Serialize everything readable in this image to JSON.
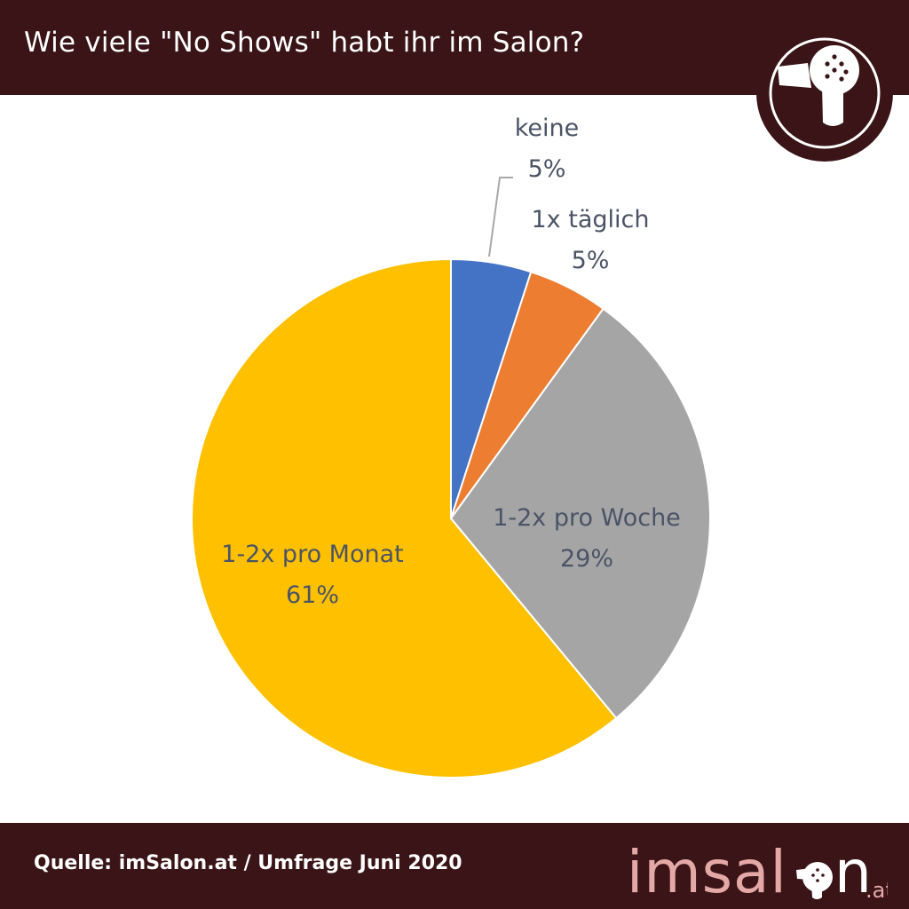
{
  "header": {
    "title": "Wie viele \"No Shows\" habt ihr im Salon?"
  },
  "footer": {
    "source": "Quelle: imSalon.at / Umfrage Juni 2020",
    "logo_text_main": "imsal",
    "logo_text_end": "n",
    "logo_suffix": ".at"
  },
  "icons": {
    "badge": "hair-dryer-icon"
  },
  "colors": {
    "header_bg": "#3a1416",
    "label_text": "#4a5466",
    "logo_pink": "#e4a9a7"
  },
  "chart_data": {
    "type": "pie",
    "title": "Wie viele \"No Shows\" habt ihr im Salon?",
    "start_angle_deg": 0,
    "direction": "clockwise",
    "slices": [
      {
        "label": "keine",
        "value": 5,
        "display": "5%",
        "color": "#4472c4"
      },
      {
        "label": "1x täglich",
        "value": 5,
        "display": "5%",
        "color": "#ed7d31"
      },
      {
        "label": "1-2x pro Woche",
        "value": 29,
        "display": "29%",
        "color": "#a5a5a5"
      },
      {
        "label": "1-2x pro Monat",
        "value": 61,
        "display": "61%",
        "color": "#ffc000"
      }
    ]
  }
}
